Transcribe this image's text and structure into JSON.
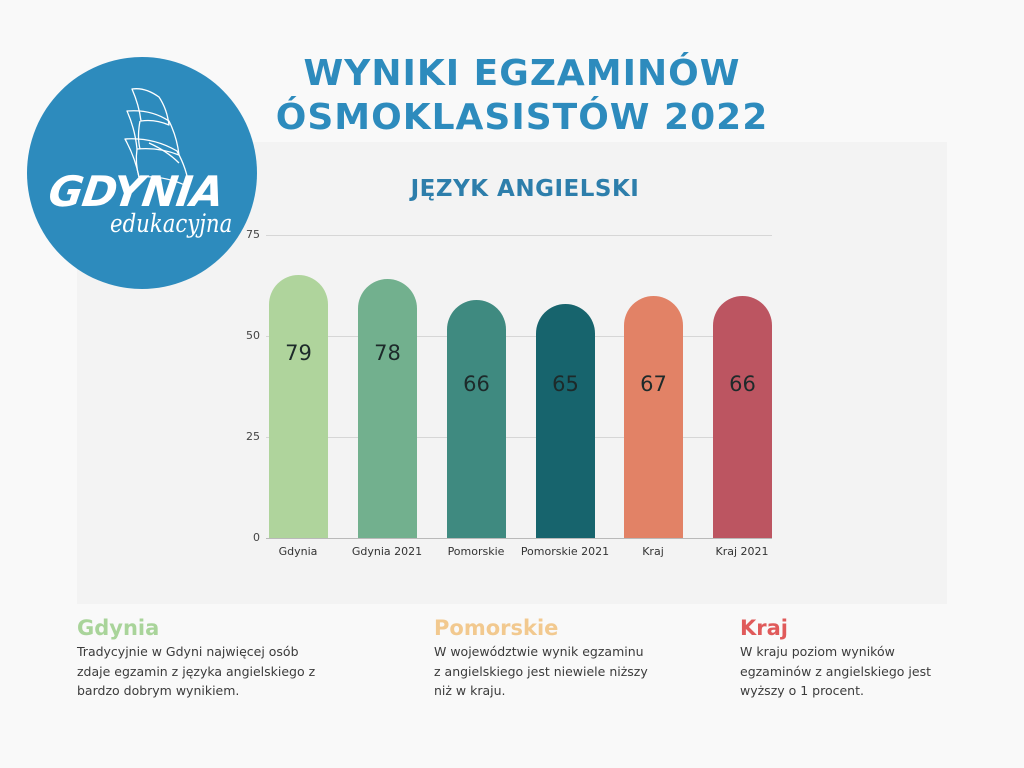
{
  "header": {
    "title_line1": "WYNIKI EGZAMINÓW",
    "title_line2": "ÓSMOKLASISTÓW 2022",
    "title_color": "#2d8bbd"
  },
  "logo": {
    "main_text": "GDYNIA",
    "sub_text": "edukacyjna",
    "icon": "sailing-ship-icon",
    "background_color": "#2d8bbd"
  },
  "chart_data": {
    "type": "bar",
    "title": "JĘZYK ANGIELSKI",
    "xlabel": "",
    "ylabel": "",
    "ylim": [
      0,
      75
    ],
    "yticks": [
      0,
      25,
      50,
      75
    ],
    "grid": true,
    "legend": "none",
    "categories": [
      "Gdynia",
      "Gdynia 2021",
      "Pomorskie",
      "Pomorskie 2021",
      "Kraj",
      "Kraj 2021"
    ],
    "values": [
      79,
      78,
      66,
      65,
      67,
      66
    ],
    "drawn_heights_on_axis": [
      65,
      64,
      59,
      58,
      60,
      60
    ],
    "colors": [
      "#afd49c",
      "#72b08e",
      "#3f8a80",
      "#17646d",
      "#e28266",
      "#bc5561"
    ],
    "value_label_position": "inside"
  },
  "notes": [
    {
      "heading": "Gdynia",
      "color": "#a9d49a",
      "text_lines": [
        "Tradycyjnie w Gdyni najwięcej osób",
        "zdaje egzamin z języka angielskiego z",
        "bardzo dobrym wynikiem."
      ]
    },
    {
      "heading": "Pomorskie",
      "color": "#f2c98f",
      "text_lines": [
        "W województwie wynik egzaminu",
        "z angielskiego jest niewiele niższy",
        "niż w kraju."
      ]
    },
    {
      "heading": "Kraj",
      "color": "#e05a5a",
      "text_lines": [
        "W kraju poziom wyników",
        "egzaminów z angielskiego jest",
        "wyższy o 1 procent."
      ]
    }
  ]
}
